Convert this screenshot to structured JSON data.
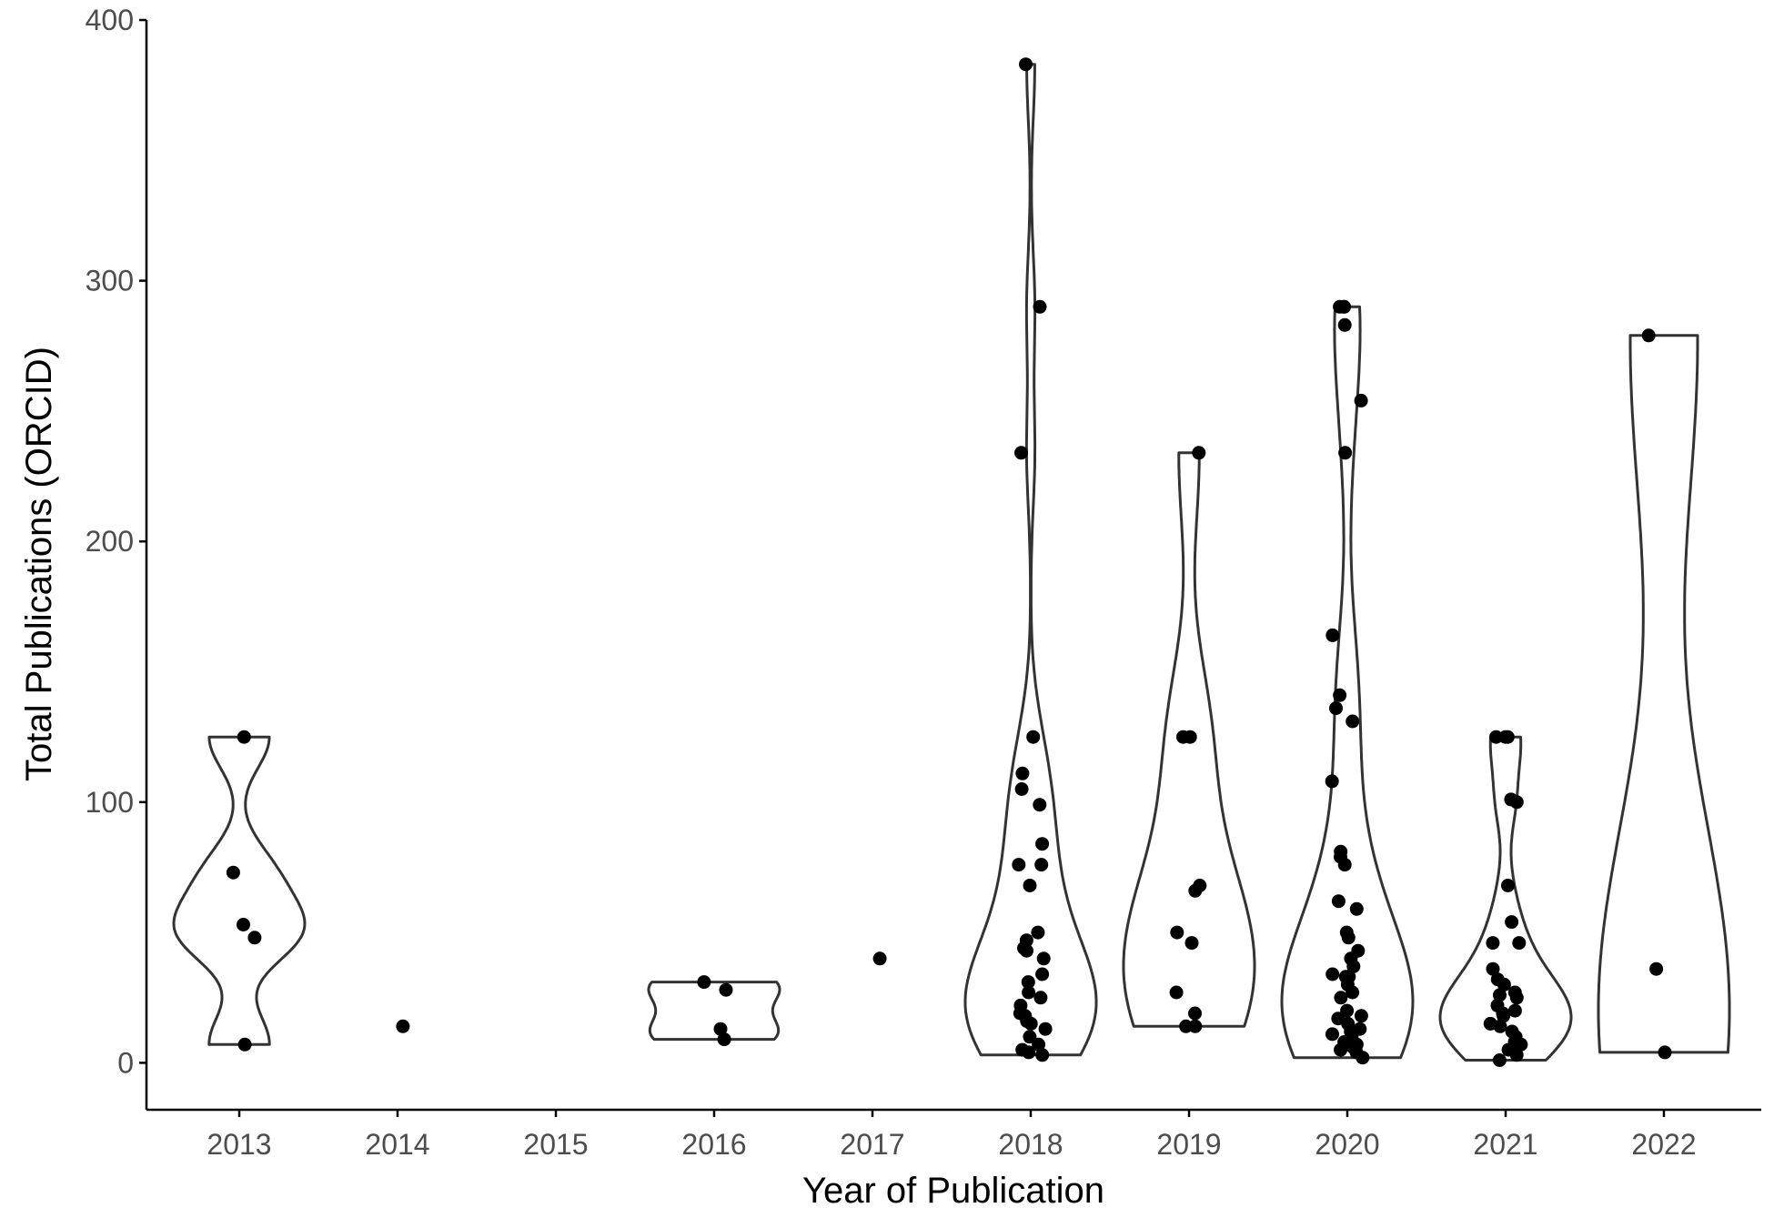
{
  "chart_data": {
    "type": "violin",
    "xlabel": "Year of Publication",
    "ylabel": "Total Publications (ORCID)",
    "ylim": [
      -18,
      400
    ],
    "yticks": [
      0,
      100,
      200,
      300,
      400
    ],
    "categories": [
      "2013",
      "2014",
      "2015",
      "2016",
      "2017",
      "2018",
      "2019",
      "2020",
      "2021",
      "2022"
    ],
    "legend": "none",
    "grid": false,
    "groups": [
      {
        "category": "2013",
        "values": [
          125,
          73,
          53,
          48,
          7
        ]
      },
      {
        "category": "2014",
        "values": [
          14
        ]
      },
      {
        "category": "2015",
        "values": []
      },
      {
        "category": "2016",
        "values": [
          31,
          28,
          13,
          9
        ]
      },
      {
        "category": "2017",
        "values": [
          40
        ]
      },
      {
        "category": "2018",
        "values": [
          383,
          290,
          234,
          125,
          111,
          105,
          99,
          84,
          76,
          76,
          68,
          50,
          47,
          44,
          43,
          40,
          34,
          31,
          27,
          25,
          22,
          19,
          18,
          16,
          15,
          13,
          10,
          7,
          5,
          4,
          3
        ]
      },
      {
        "category": "2019",
        "values": [
          234,
          125,
          125,
          68,
          66,
          50,
          46,
          27,
          19,
          14,
          14
        ]
      },
      {
        "category": "2020",
        "values": [
          290,
          290,
          290,
          283,
          254,
          234,
          164,
          141,
          136,
          131,
          108,
          81,
          79,
          76,
          62,
          59,
          50,
          48,
          43,
          40,
          37,
          34,
          33,
          33,
          30,
          27,
          25,
          20,
          18,
          17,
          15,
          13,
          12,
          11,
          10,
          9,
          8,
          7,
          6,
          5,
          4,
          2
        ]
      },
      {
        "category": "2021",
        "values": [
          125,
          125,
          125,
          101,
          100,
          68,
          54,
          46,
          46,
          36,
          32,
          30,
          27,
          26,
          25,
          22,
          20,
          19,
          18,
          15,
          14,
          12,
          10,
          8,
          7,
          5,
          3,
          1
        ]
      },
      {
        "category": "2022",
        "values": [
          279,
          36,
          4
        ]
      }
    ]
  }
}
